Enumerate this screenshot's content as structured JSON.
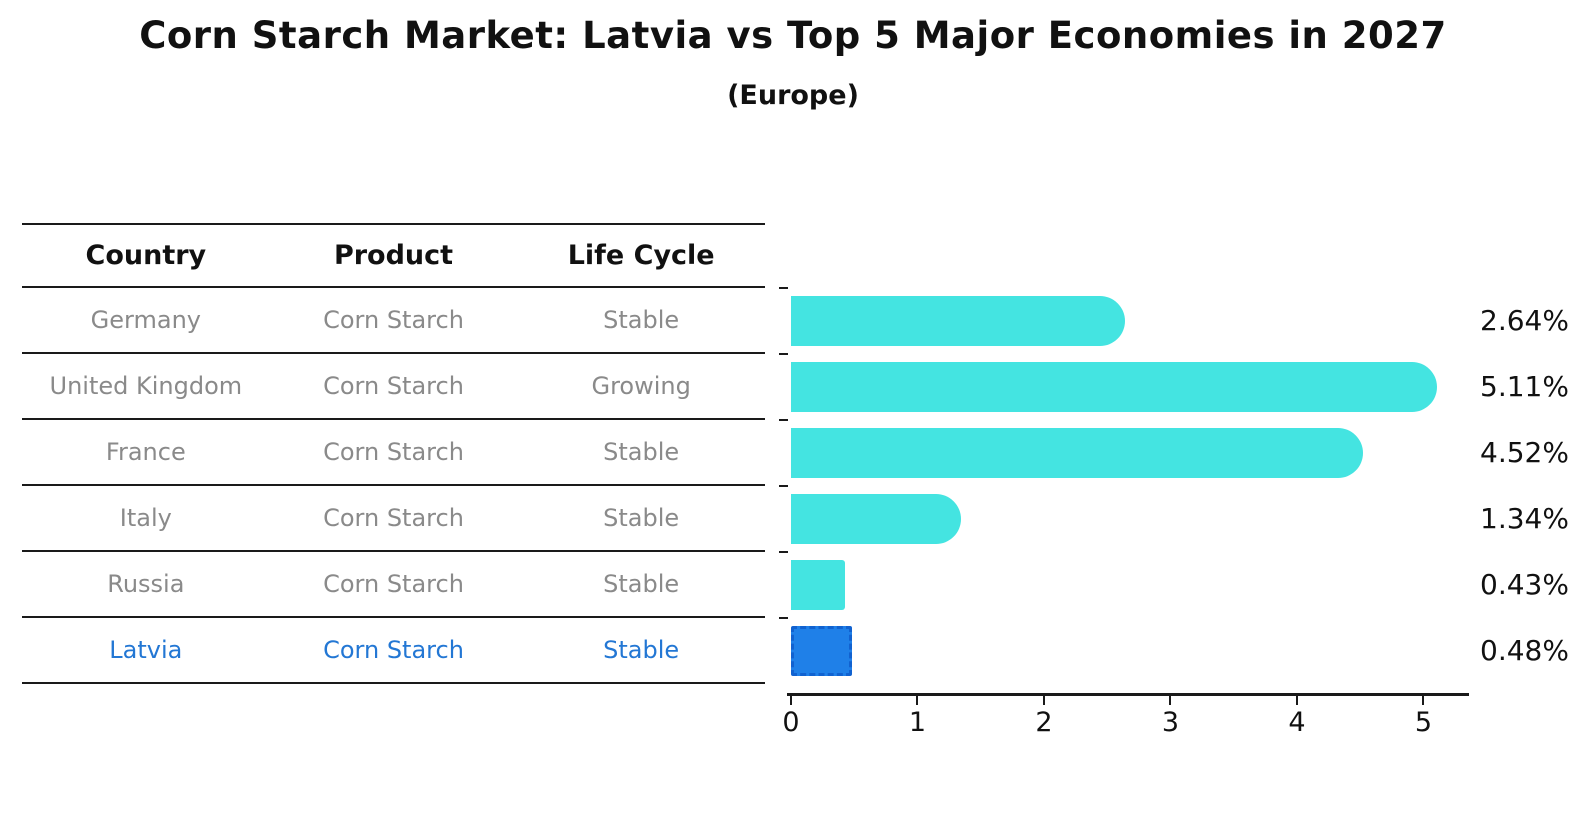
{
  "header": {
    "title": "Corn Starch Market: Latvia vs Top 5 Major Economies in 2027",
    "subtitle": "(Europe)"
  },
  "table": {
    "headers": [
      "Country",
      "Product",
      "Life Cycle"
    ],
    "rows": [
      {
        "country": "Germany",
        "product": "Corn Starch",
        "life_cycle": "Stable"
      },
      {
        "country": "United Kingdom",
        "product": "Corn Starch",
        "life_cycle": "Growing"
      },
      {
        "country": "France",
        "product": "Corn Starch",
        "life_cycle": "Stable"
      },
      {
        "country": "Italy",
        "product": "Corn Starch",
        "life_cycle": "Stable"
      },
      {
        "country": "Russia",
        "product": "Corn Starch",
        "life_cycle": "Stable"
      },
      {
        "country": "Latvia",
        "product": "Corn Starch",
        "life_cycle": "Stable"
      }
    ],
    "highlight_row": "Latvia"
  },
  "chart_data": {
    "type": "bar",
    "orientation": "horizontal",
    "title": "Corn Starch Market: Latvia vs Top 5 Major Economies in 2027",
    "subtitle": "(Europe)",
    "categories": [
      "Germany",
      "United Kingdom",
      "France",
      "Italy",
      "Russia",
      "Latvia"
    ],
    "values": [
      2.64,
      5.11,
      4.52,
      1.34,
      0.43,
      0.48
    ],
    "value_labels": [
      "2.64%",
      "5.11%",
      "4.52%",
      "1.34%",
      "0.43%",
      "0.48%"
    ],
    "x_ticks": [
      0,
      1,
      2,
      3,
      4,
      5
    ],
    "xlim": [
      0,
      5.36
    ],
    "grid": false,
    "legend": "none",
    "bar_color": "#44E4E1",
    "highlight_index": 5,
    "highlight_color": "#1F80E8",
    "highlight_border_color": "#1162D0"
  },
  "colors": {
    "background": "#FFFFFF",
    "bar_cyan": "#44E4E1",
    "latvia_blue": "#1F80E8",
    "latvia_border": "#1162D0",
    "table_text_gray": "#8A8A8A",
    "table_highlight_text": "#2377D4",
    "line_black": "#1A1A1A"
  }
}
